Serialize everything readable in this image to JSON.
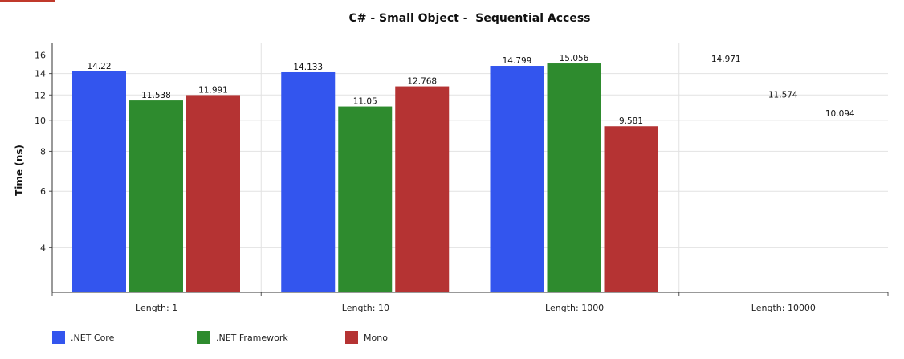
{
  "chart_data": {
    "type": "bar",
    "title": "C# - Small Object -  Sequential Access",
    "xlabel": "",
    "ylabel": "Time (ns)",
    "y_scale": "log",
    "ylim": [
      2.9,
      17.4
    ],
    "y_ticks": [
      4,
      6,
      8,
      10,
      12,
      14,
      16
    ],
    "grid": true,
    "legend_position": "bottom-left",
    "categories": [
      "Length: 1",
      "Length: 10",
      "Length: 1000",
      "Length: 10000"
    ],
    "series": [
      {
        "name": ".NET Core",
        "color": "#3355ee",
        "values": [
          14.22,
          14.133,
          14.799,
          14.971
        ]
      },
      {
        "name": ".NET Framework",
        "color": "#2e8b2e",
        "values": [
          11.538,
          11.05,
          15.056,
          11.574
        ]
      },
      {
        "name": "Mono",
        "color": "#b53333",
        "values": [
          11.991,
          12.768,
          9.581,
          10.094
        ]
      }
    ],
    "value_labels": [
      [
        "14.22",
        "11.538",
        "11.991"
      ],
      [
        "14.133",
        "11.05",
        "12.768"
      ],
      [
        "14.799",
        "15.056",
        "9.581"
      ],
      [
        "14.971",
        "11.574",
        "10.094"
      ]
    ],
    "bars_drawn_for_category": [
      true,
      true,
      true,
      false
    ]
  }
}
